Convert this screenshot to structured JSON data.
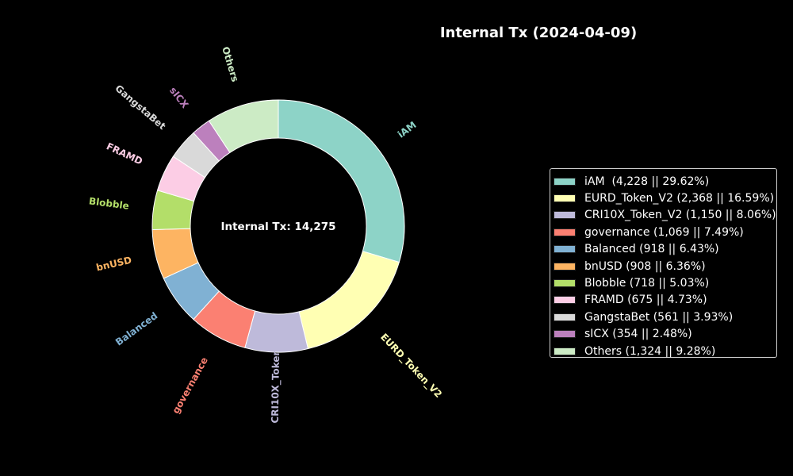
{
  "title": "Internal Tx (2024-04-09)",
  "chart_data": {
    "type": "pie",
    "variant": "donut",
    "title": "Internal Tx (2024-04-09)",
    "center_label": "Internal Tx: 14,275",
    "total": 14275,
    "start_angle_deg": 90,
    "direction": "clockwise",
    "legend_position": "right",
    "slices": [
      {
        "name": "iAM",
        "value": 4228,
        "percent": 29.62,
        "color": "#8dd3c7",
        "legend": "iAM  (4,228 || 29.62%)"
      },
      {
        "name": "EURD_Token_V2",
        "value": 2368,
        "percent": 16.59,
        "color": "#ffffb3",
        "legend": "EURD_Token_V2 (2,368 || 16.59%)"
      },
      {
        "name": "CRI10X_Token_V2",
        "value": 1150,
        "percent": 8.06,
        "color": "#bebada",
        "legend": "CRI10X_Token_V2 (1,150 || 8.06%)"
      },
      {
        "name": "governance",
        "value": 1069,
        "percent": 7.49,
        "color": "#fb8072",
        "legend": "governance (1,069 || 7.49%)"
      },
      {
        "name": "Balanced",
        "value": 918,
        "percent": 6.43,
        "color": "#80b1d3",
        "legend": "Balanced (918 || 6.43%)"
      },
      {
        "name": "bnUSD",
        "value": 908,
        "percent": 6.36,
        "color": "#fdb462",
        "legend": "bnUSD (908 || 6.36%)"
      },
      {
        "name": "Blobble",
        "value": 718,
        "percent": 5.03,
        "color": "#b3de69",
        "legend": "Blobble (718 || 5.03%)"
      },
      {
        "name": "FRAMD",
        "value": 675,
        "percent": 4.73,
        "color": "#fccde5",
        "legend": "FRAMD (675 || 4.73%)"
      },
      {
        "name": "GangstaBet",
        "value": 561,
        "percent": 3.93,
        "color": "#d9d9d9",
        "legend": "GangstaBet (561 || 3.93%)"
      },
      {
        "name": "sICX",
        "value": 354,
        "percent": 2.48,
        "color": "#bc80bd",
        "legend": "sICX (354 || 2.48%)"
      },
      {
        "name": "Others",
        "value": 1324,
        "percent": 9.28,
        "color": "#ccebc5",
        "legend": "Others (1,324 || 9.28%)"
      }
    ]
  }
}
